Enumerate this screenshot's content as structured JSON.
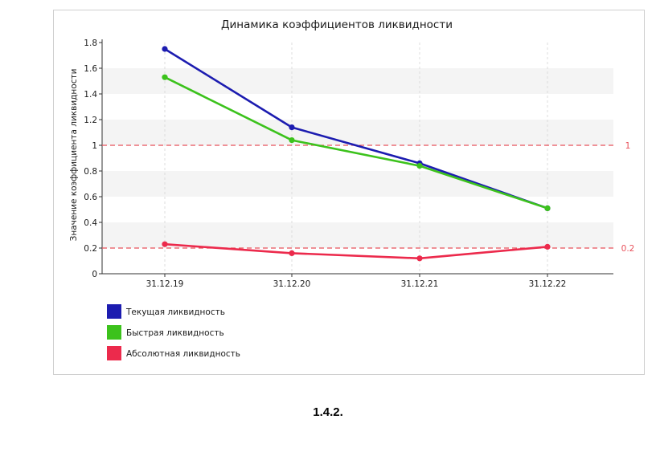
{
  "chart_data": {
    "type": "line",
    "title": "Динамика коэффициентов ликвидности",
    "xlabel": "",
    "ylabel": "Значение коэффициента ликвидности",
    "categories": [
      "31.12.19",
      "31.12.20",
      "31.12.21",
      "31.12.22"
    ],
    "ylim": [
      0,
      1.8
    ],
    "yticks": [
      0,
      0.2,
      0.4,
      0.6,
      0.8,
      1,
      1.2,
      1.4,
      1.6,
      1.8
    ],
    "ytick_labels": [
      "0",
      "0.2",
      "0.4",
      "0.6",
      "0.8",
      "1",
      "1.2",
      "1.4",
      "1.6",
      "1.8"
    ],
    "series": [
      {
        "name": "Текущая ликвидность",
        "color": "#1c1cb0",
        "values": [
          1.75,
          1.14,
          0.86,
          0.51
        ]
      },
      {
        "name": "Быстрая ликвидность",
        "color": "#3cc21c",
        "values": [
          1.53,
          1.04,
          0.84,
          0.51
        ]
      },
      {
        "name": "Абсолютная ликвидность",
        "color": "#ec2a4c",
        "values": [
          0.23,
          0.16,
          0.12,
          0.21
        ]
      }
    ],
    "reference_lines": [
      {
        "value": 1,
        "label": "1",
        "color": "#e8505a"
      },
      {
        "value": 0.2,
        "label": "0.2",
        "color": "#e8505a"
      }
    ],
    "grid": "alternating horizontal bands",
    "legend_position": "bottom-left"
  },
  "caption": "1.4.2."
}
